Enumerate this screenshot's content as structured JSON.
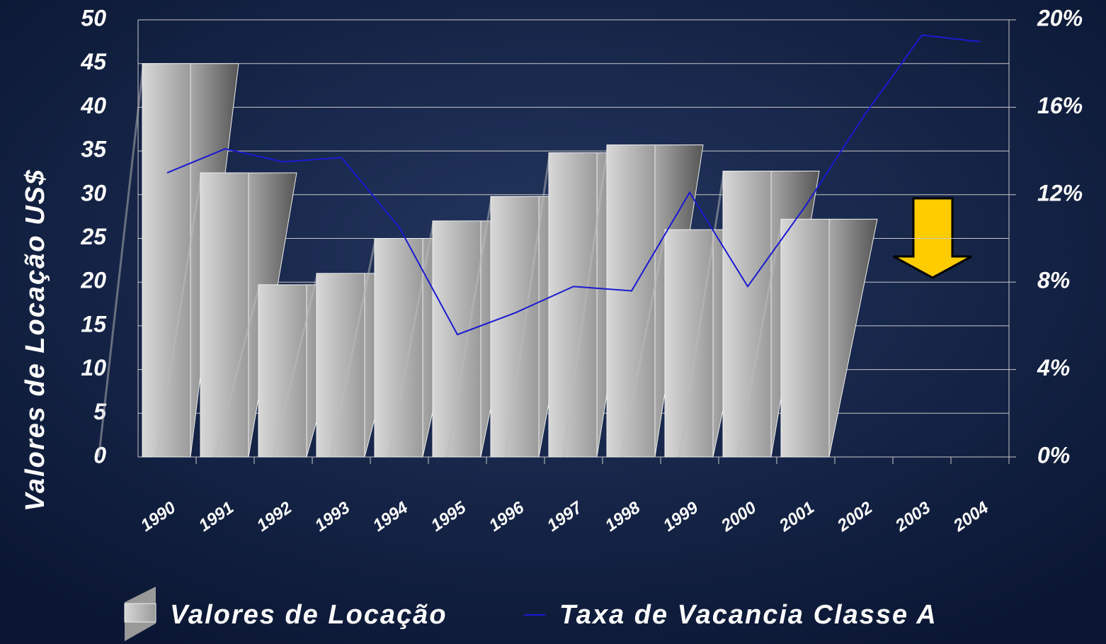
{
  "chart_data": {
    "type": "bar-line",
    "y_label": "Valores de Locação US$",
    "categories": [
      "1990",
      "1991",
      "1992",
      "1993",
      "1994",
      "1995",
      "1996",
      "1997",
      "1998",
      "1999",
      "2000",
      "2001",
      "2002",
      "2003",
      "2004"
    ],
    "series": [
      {
        "name": "Valores de Locação",
        "type": "bar",
        "color": "#b8b8b8",
        "values": [
          45,
          32.5,
          19.7,
          21,
          25,
          27,
          29.8,
          34.8,
          35.7,
          26,
          32.7,
          27.2,
          null,
          null,
          null
        ]
      },
      {
        "name": "Taxa de Vacancia Classe A",
        "type": "line",
        "axis": "y2",
        "color": "#1a1ad0",
        "values": [
          13.0,
          14.1,
          13.5,
          13.7,
          10.5,
          5.6,
          6.6,
          7.8,
          7.6,
          12.1,
          7.8,
          11.5,
          15.6,
          19.3,
          19.0
        ]
      }
    ],
    "ylim": [
      0,
      50
    ],
    "yticks": [
      0,
      5,
      10,
      15,
      20,
      25,
      30,
      35,
      40,
      45,
      50
    ],
    "y2lim": [
      0,
      20
    ],
    "y2ticks": [
      {
        "value": 0,
        "label": "0%"
      },
      {
        "value": 4,
        "label": "4%"
      },
      {
        "value": 8,
        "label": "8%"
      },
      {
        "value": 12,
        "label": "12%"
      },
      {
        "value": 16,
        "label": "16%"
      },
      {
        "value": 20,
        "label": "20%"
      }
    ],
    "grid": true
  }
}
